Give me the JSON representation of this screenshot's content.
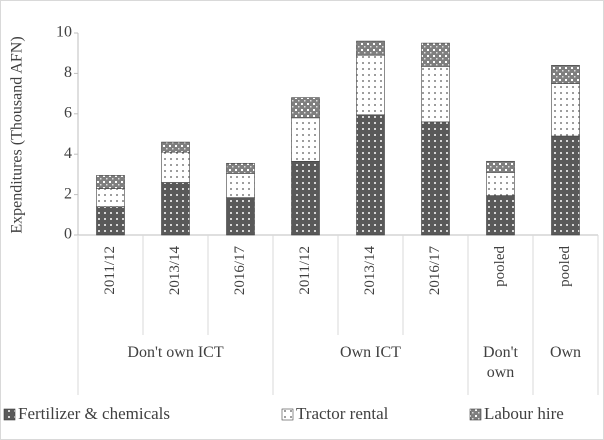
{
  "chart_data": {
    "type": "bar",
    "stacked": true,
    "y_label": "Expenditures (Thousand AFN)",
    "groups": [
      {
        "label": "Don't own ICT",
        "categories": [
          "2011/12",
          "2013/14",
          "2016/17"
        ]
      },
      {
        "label": "Own ICT",
        "categories": [
          "2011/12",
          "2013/14",
          "2016/17"
        ]
      },
      {
        "label": "Don't own",
        "categories": [
          "pooled"
        ]
      },
      {
        "label": "Own",
        "categories": [
          "pooled"
        ]
      }
    ],
    "series": [
      {
        "name": "Fertilizer & chemicals",
        "color": "#595959",
        "values": [
          1.4,
          2.6,
          1.85,
          3.65,
          5.95,
          5.6,
          1.95,
          4.9
        ]
      },
      {
        "name": "Tractor rental",
        "color": "#ffffff",
        "values": [
          0.9,
          1.5,
          1.2,
          2.15,
          2.95,
          2.75,
          1.15,
          2.6
        ]
      },
      {
        "name": "Labour hire",
        "color": "#7f7f7f",
        "values": [
          0.65,
          0.5,
          0.5,
          1.0,
          0.7,
          1.15,
          0.55,
          0.9
        ]
      }
    ],
    "ylim": [
      0,
      10
    ],
    "yticks": [
      0,
      2,
      4,
      6,
      8,
      10
    ],
    "legend": "bottom"
  }
}
